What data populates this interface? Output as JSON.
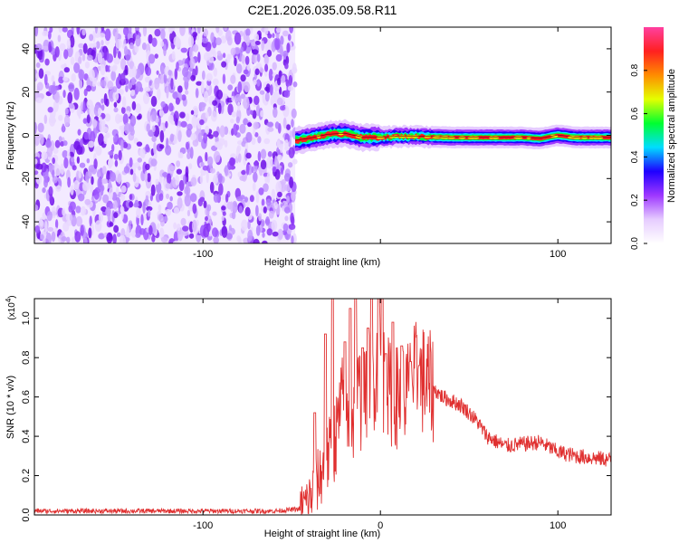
{
  "title": "C2E1.2026.035.09.58.R11",
  "chart_data": [
    {
      "type": "heatmap",
      "xlabel": "Height of straight line (km)",
      "ylabel": "Frequency (Hz)",
      "xlim": [
        -195,
        130
      ],
      "ylim": [
        -50,
        50
      ],
      "xticks": [
        -100,
        0,
        100
      ],
      "xtick_labels": [
        "-100",
        "",
        "100"
      ],
      "yticks": [
        -40,
        -20,
        0,
        20,
        40
      ],
      "ytick_labels": [
        "-40",
        "-20",
        "0",
        "20",
        "40"
      ],
      "noise_region_x": [
        -195,
        -48
      ],
      "signal_start_x": -48,
      "signal_ridge": {
        "x": [
          -48,
          -40,
          -30,
          -20,
          -10,
          0,
          10,
          20,
          40,
          60,
          80,
          90,
          100,
          110,
          130
        ],
        "y": [
          -2.5,
          -1.5,
          0.3,
          0.8,
          -1.0,
          -1.0,
          -0.5,
          -0.5,
          -1.0,
          -1.0,
          -1.0,
          -1.5,
          0.0,
          -1.0,
          -1.0
        ]
      },
      "colorbar": {
        "label": "Normalized spectral amplitude",
        "range": [
          0,
          1
        ],
        "ticks": [
          0.0,
          0.2,
          0.4,
          0.6,
          0.8
        ],
        "tick_labels": [
          "0.0",
          "0.2",
          "0.4",
          "0.6",
          "0.8"
        ],
        "colors": [
          "#ffffff",
          "#e6ccff",
          "#9e37ff",
          "#1e00ff",
          "#00ddff",
          "#00ff30",
          "#e4ff00",
          "#ff8c00",
          "#ff2020",
          "#ff40a0"
        ]
      }
    },
    {
      "type": "line",
      "xlabel": "Height of straight line (km)",
      "ylabel": "SNR (10 * v/v)",
      "y_multiplier_label": "(x10",
      "y_multiplier_exp": "4",
      "y_multiplier_close": ")",
      "xlim": [
        -195,
        130
      ],
      "ylim": [
        0,
        1.1
      ],
      "xticks": [
        -100,
        0,
        100
      ],
      "xtick_labels": [
        "-100",
        "0",
        "100"
      ],
      "yticks": [
        0.0,
        0.2,
        0.4,
        0.6,
        0.8,
        1.0
      ],
      "ytick_labels": [
        "0.0",
        "0.2",
        "0.4",
        "0.6",
        "0.8",
        "1.0"
      ],
      "color": "#e03030",
      "series": [
        {
          "x": [
            -195,
            -150,
            -100,
            -60,
            -45,
            -40,
            -35,
            -30,
            -25,
            -22,
            -20,
            -18,
            -15,
            -12,
            -10,
            -8,
            -5,
            0,
            5,
            10,
            15,
            20,
            25,
            30,
            35,
            40,
            45,
            50,
            55,
            60,
            70,
            80,
            90,
            100,
            110,
            120,
            130
          ],
          "y": [
            0.02,
            0.02,
            0.02,
            0.02,
            0.03,
            0.08,
            0.18,
            0.28,
            0.4,
            0.55,
            0.58,
            0.45,
            0.5,
            0.62,
            0.55,
            0.6,
            0.72,
            0.75,
            0.62,
            0.6,
            0.62,
            0.7,
            0.68,
            0.64,
            0.6,
            0.58,
            0.56,
            0.52,
            0.47,
            0.4,
            0.35,
            0.36,
            0.37,
            0.32,
            0.3,
            0.29,
            0.28
          ]
        }
      ],
      "spikes": {
        "x": [
          -37,
          -31,
          -27,
          -20,
          -17,
          -14,
          -10,
          -7,
          -5,
          -1,
          1,
          3,
          7,
          12,
          17,
          22
        ],
        "y": [
          0.52,
          0.92,
          1.1,
          0.88,
          1.05,
          1.1,
          0.85,
          0.95,
          1.1,
          1.1,
          1.1,
          0.82,
          0.98,
          0.86,
          0.78,
          0.76
        ]
      }
    }
  ]
}
